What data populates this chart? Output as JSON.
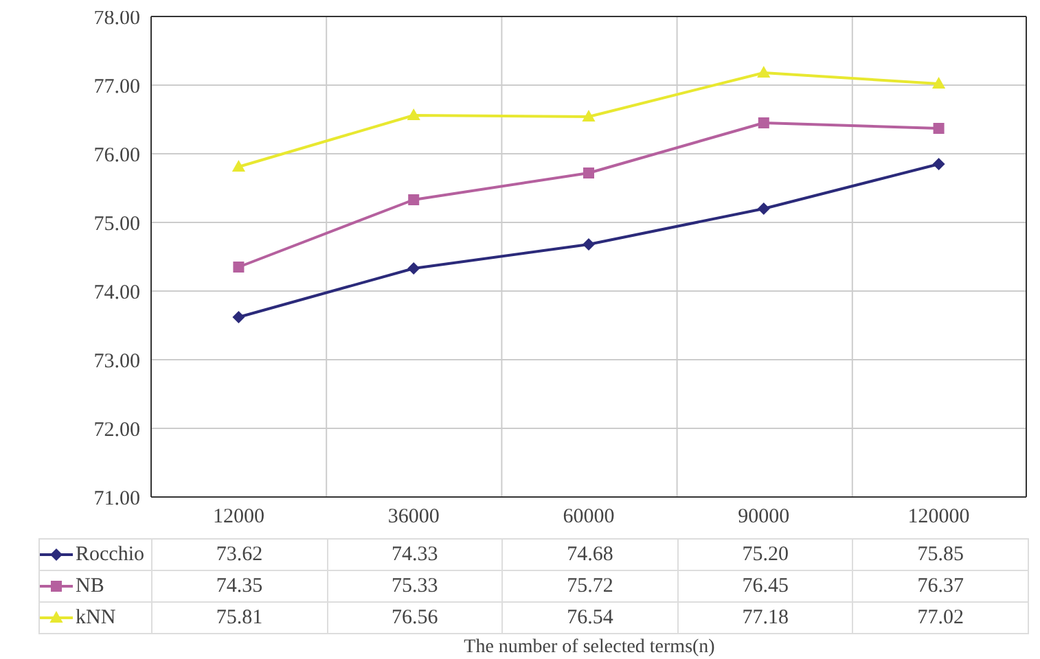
{
  "chart_data": {
    "type": "line",
    "annotations": [
      "The number of selected terms(n)"
    ],
    "categories": [
      "12000",
      "36000",
      "60000",
      "90000",
      "120000"
    ],
    "series": [
      {
        "name": "Rocchio",
        "color": "#2b2a7a",
        "marker": "diamond",
        "values": [
          73.62,
          74.33,
          74.68,
          75.2,
          75.85
        ],
        "value_labels": [
          "73.62",
          "74.33",
          "74.68",
          "75.20",
          "75.85"
        ]
      },
      {
        "name": "NB",
        "color": "#b5609e",
        "marker": "square",
        "values": [
          74.35,
          75.33,
          75.72,
          76.45,
          76.37
        ],
        "value_labels": [
          "74.35",
          "75.33",
          "75.72",
          "76.45",
          "76.37"
        ]
      },
      {
        "name": "kNN",
        "color": "#e8e830",
        "marker": "triangle",
        "values": [
          75.81,
          76.56,
          76.54,
          77.18,
          77.02
        ],
        "value_labels": [
          "75.81",
          "76.56",
          "76.54",
          "77.18",
          "77.02"
        ]
      }
    ],
    "ylim": [
      71,
      78
    ],
    "yticks": [
      {
        "value": 71,
        "label": "71.00"
      },
      {
        "value": 72,
        "label": "72.00"
      },
      {
        "value": 73,
        "label": "73.00"
      },
      {
        "value": 74,
        "label": "74.00"
      },
      {
        "value": 75,
        "label": "75.00"
      },
      {
        "value": 76,
        "label": "76.00"
      },
      {
        "value": 77,
        "label": "77.00"
      },
      {
        "value": 78,
        "label": "78.00"
      }
    ],
    "grid": true,
    "legend": "bottom left"
  }
}
